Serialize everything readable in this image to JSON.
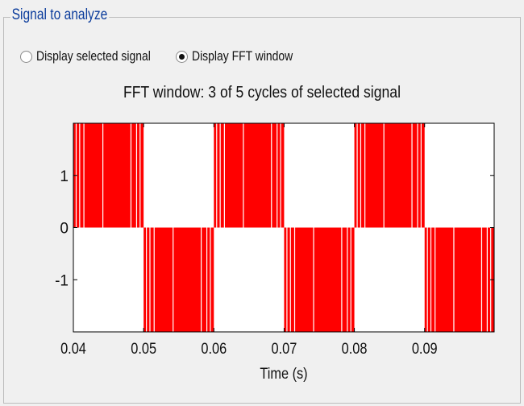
{
  "panel": {
    "title": "Signal to analyze"
  },
  "radios": [
    {
      "label": "Display selected signal",
      "checked": false
    },
    {
      "label": "Display FFT window",
      "checked": true
    }
  ],
  "chart_data": {
    "type": "line",
    "title": "FFT window: 3 of 5 cycles of selected signal",
    "xlabel": "Time (s)",
    "ylabel": "",
    "xlim": [
      0.04,
      0.0999
    ],
    "ylim": [
      -2,
      2
    ],
    "xticks": [
      0.04,
      0.05,
      0.06,
      0.07,
      0.08,
      0.09
    ],
    "xtick_labels": [
      "0.04",
      "0.05",
      "0.06",
      "0.07",
      "0.08",
      "0.09"
    ],
    "yticks": [
      1,
      0,
      -1
    ],
    "ytick_labels": [
      "1",
      "0",
      "-1"
    ],
    "grid": false,
    "series": [
      {
        "color": "#ff0000",
        "segments": [
          {
            "x_start": 0.04,
            "x_end": 0.05,
            "level": 2
          },
          {
            "x_start": 0.05,
            "x_end": 0.06,
            "level": -2
          },
          {
            "x_start": 0.06,
            "x_end": 0.07,
            "level": 2
          },
          {
            "x_start": 0.07,
            "x_end": 0.08,
            "level": -2
          },
          {
            "x_start": 0.08,
            "x_end": 0.09,
            "level": 2
          },
          {
            "x_start": 0.09,
            "x_end": 0.0999,
            "level": -2
          }
        ]
      }
    ]
  }
}
